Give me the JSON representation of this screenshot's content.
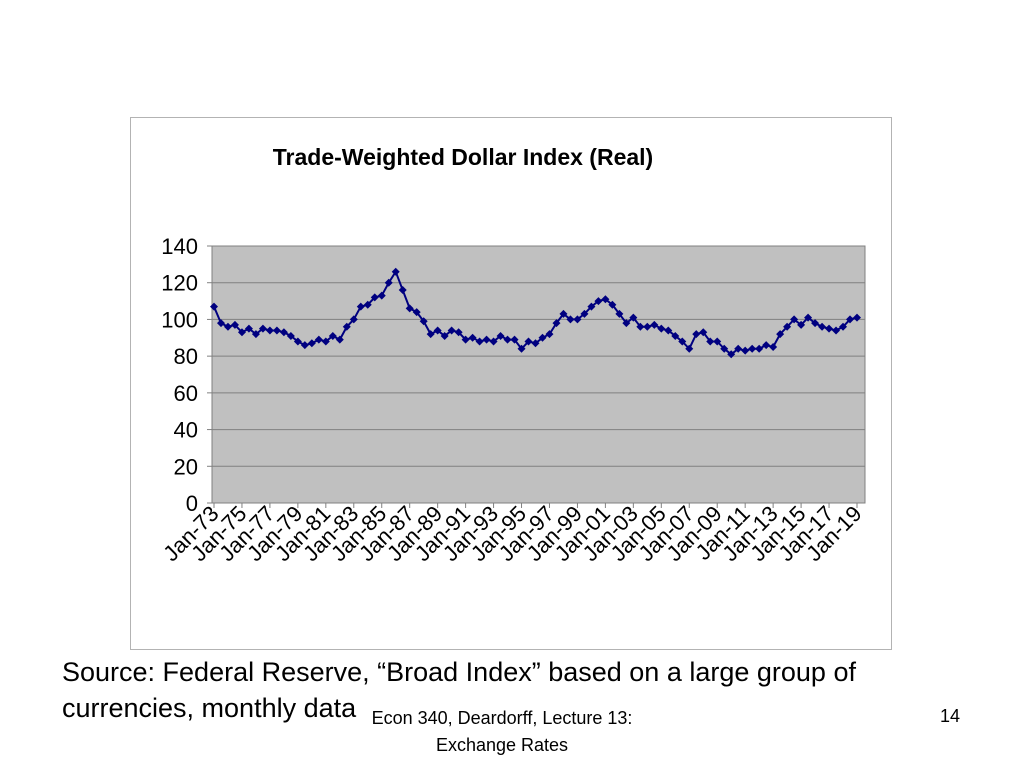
{
  "slide": {
    "source_text": "Source:  Federal Reserve, “Broad Index” based on a large group of currencies, monthly data",
    "footer_line1": "Econ 340, Deardorff, Lecture 13:",
    "footer_line2": "Exchange Rates",
    "page_number": "14"
  },
  "chart_data": {
    "type": "line",
    "title": "Trade-Weighted Dollar Index (Real)",
    "xlabel": "",
    "ylabel": "",
    "ylim": [
      0,
      140
    ],
    "yticks": [
      0,
      20,
      40,
      60,
      80,
      100,
      120,
      140
    ],
    "x_tick_labels": [
      "Jan-73",
      "Jan-75",
      "Jan-77",
      "Jan-79",
      "Jan-81",
      "Jan-83",
      "Jan-85",
      "Jan-87",
      "Jan-89",
      "Jan-91",
      "Jan-93",
      "Jan-95",
      "Jan-97",
      "Jan-99",
      "Jan-01",
      "Jan-03",
      "Jan-05",
      "Jan-07",
      "Jan-09",
      "Jan-11",
      "Jan-13",
      "Jan-15",
      "Jan-17",
      "Jan-19"
    ],
    "grid": true,
    "legend": "none",
    "plot_background": "#c0c0c0",
    "series_color": "#000080",
    "marker": "diamond",
    "series": [
      {
        "name": "",
        "x": [
          1973.0,
          1973.5,
          1974.0,
          1974.5,
          1975.0,
          1975.5,
          1976.0,
          1976.5,
          1977.0,
          1977.5,
          1978.0,
          1978.5,
          1979.0,
          1979.5,
          1980.0,
          1980.5,
          1981.0,
          1981.5,
          1982.0,
          1982.5,
          1983.0,
          1983.5,
          1984.0,
          1984.5,
          1985.0,
          1985.5,
          1986.0,
          1986.5,
          1987.0,
          1987.5,
          1988.0,
          1988.5,
          1989.0,
          1989.5,
          1990.0,
          1990.5,
          1991.0,
          1991.5,
          1992.0,
          1992.5,
          1993.0,
          1993.5,
          1994.0,
          1994.5,
          1995.0,
          1995.5,
          1996.0,
          1996.5,
          1997.0,
          1997.5,
          1998.0,
          1998.5,
          1999.0,
          1999.5,
          2000.0,
          2000.5,
          2001.0,
          2001.5,
          2002.0,
          2002.5,
          2003.0,
          2003.5,
          2004.0,
          2004.5,
          2005.0,
          2005.5,
          2006.0,
          2006.5,
          2007.0,
          2007.5,
          2008.0,
          2008.5,
          2009.0,
          2009.5,
          2010.0,
          2010.5,
          2011.0,
          2011.5,
          2012.0,
          2012.5,
          2013.0,
          2013.5,
          2014.0,
          2014.5,
          2015.0,
          2015.5,
          2016.0,
          2016.5,
          2017.0,
          2017.5,
          2018.0,
          2018.5,
          2019.0
        ],
        "values": [
          107,
          98,
          96,
          97,
          93,
          95,
          92,
          95,
          94,
          94,
          93,
          91,
          88,
          86,
          87,
          89,
          88,
          91,
          89,
          96,
          100,
          107,
          108,
          112,
          113,
          120,
          126,
          116,
          106,
          104,
          99,
          92,
          94,
          91,
          94,
          93,
          89,
          90,
          88,
          89,
          88,
          91,
          89,
          89,
          84,
          88,
          87,
          90,
          92,
          98,
          103,
          100,
          100,
          103,
          107,
          110,
          111,
          108,
          103,
          98,
          101,
          96,
          96,
          97,
          95,
          94,
          91,
          88,
          84,
          92,
          93,
          88,
          88,
          84,
          81,
          84,
          83,
          84,
          84,
          86,
          85,
          92,
          96,
          100,
          97,
          101,
          98,
          96,
          95,
          94,
          96,
          100,
          101
        ]
      }
    ]
  }
}
